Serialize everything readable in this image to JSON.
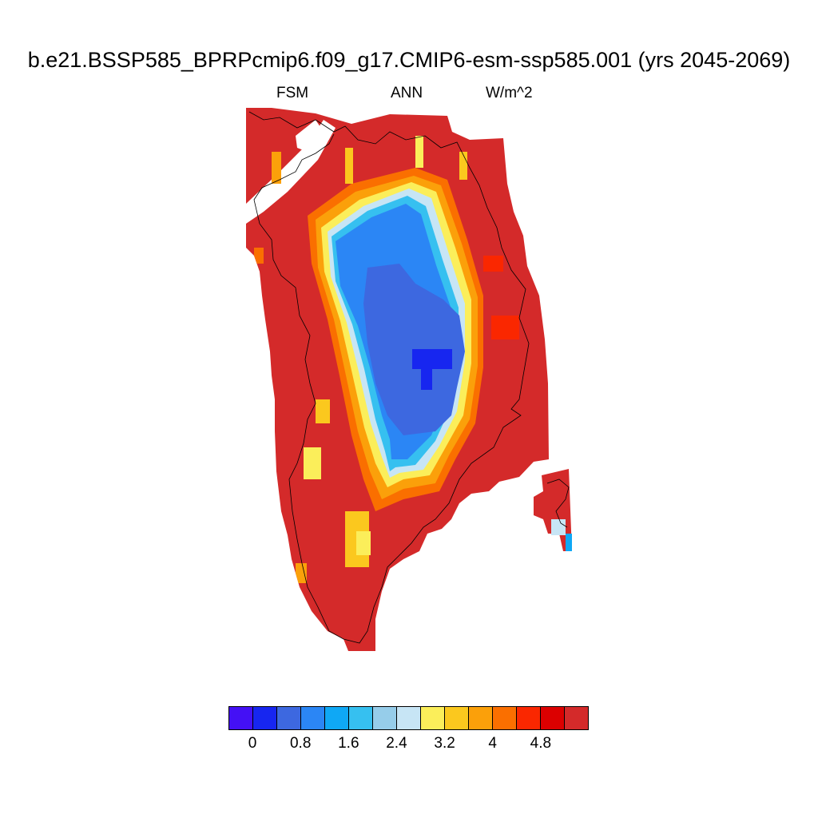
{
  "title": "b.e21.BSSP585_BPRPcmip6.f09_g17.CMIP6-esm-ssp585.001 (yrs 2045-2069)",
  "subtitle": {
    "left": "FSM",
    "center": "ANN",
    "right": "W/m^2"
  },
  "colorbar": {
    "colors": [
      "#4410f5",
      "#1726f0",
      "#3d68e0",
      "#2b86f5",
      "#0fa8f5",
      "#36c0f0",
      "#96cdea",
      "#c7e5f5",
      "#fbee5a",
      "#fbc81e",
      "#fba00a",
      "#fa6f00",
      "#fa2700",
      "#dc0000",
      "#d42a2a"
    ],
    "labels": [
      "0",
      "0.8",
      "1.6",
      "2.4",
      "3.2",
      "4",
      "4.8"
    ]
  },
  "map": {
    "region": "Greenland",
    "colors": {
      "land": "#d42a2a",
      "coastline": "#000000"
    }
  }
}
